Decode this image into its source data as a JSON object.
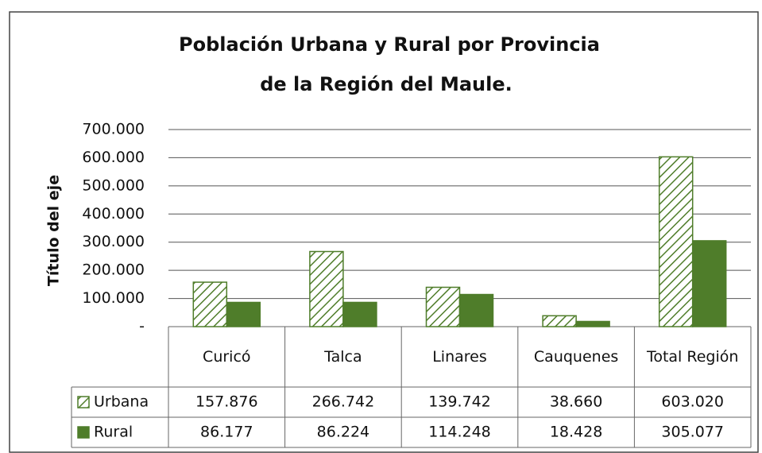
{
  "chart_data": {
    "type": "bar",
    "title": [
      "Población Urbana y Rural por Provincia",
      "de la Región del Maule."
    ],
    "y_label": "Título del eje",
    "categories": [
      "Curicó",
      "Talca",
      "Linares",
      "Cauquenes",
      "Total Región"
    ],
    "series": [
      {
        "name": "Urbana",
        "color": "#4f7d2a",
        "pattern": "hatch",
        "values": [
          157876,
          266742,
          139742,
          38660,
          603020
        ],
        "value_labels": [
          "157.876",
          "266.742",
          "139.742",
          "38.660",
          "603.020"
        ]
      },
      {
        "name": "Rural",
        "color": "#4f7d2a",
        "pattern": "solid",
        "values": [
          86177,
          86224,
          114248,
          18428,
          305077
        ],
        "value_labels": [
          "86.177",
          "86.224",
          "114.248",
          "18.428",
          "305.077"
        ]
      }
    ],
    "ylim": [
      0,
      700000
    ],
    "yticks": [
      {
        "value": 0,
        "label": "-"
      },
      {
        "value": 100000,
        "label": "100.000"
      },
      {
        "value": 200000,
        "label": "200.000"
      },
      {
        "value": 300000,
        "label": "300.000"
      },
      {
        "value": 400000,
        "label": "400.000"
      },
      {
        "value": 500000,
        "label": "500.000"
      },
      {
        "value": 600000,
        "label": "600.000"
      },
      {
        "value": 700000,
        "label": "700.000"
      }
    ],
    "grid": true
  }
}
